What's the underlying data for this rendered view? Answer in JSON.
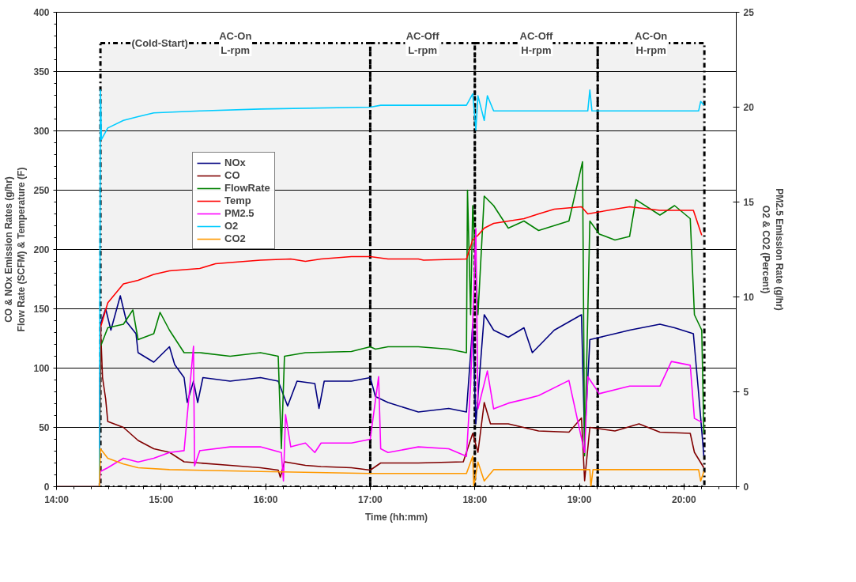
{
  "chart_data": {
    "type": "line",
    "xlabel": "Time (hh:mm)",
    "ylabel": "CO & NOx Emission Rates (g/hr)\nFlow Rate (SCFM) & Temperature (F)",
    "y2label": "PM2.5 Emission Rate (g/hr)\nO2 & CO2 (Percent)",
    "xlim": [
      14,
      20.5
    ],
    "xticks": [
      {
        "value": 14,
        "label": "14:00"
      },
      {
        "value": 15,
        "label": "15:00"
      },
      {
        "value": 16,
        "label": "16:00"
      },
      {
        "value": 17,
        "label": "17:00"
      },
      {
        "value": 18,
        "label": "18:00"
      },
      {
        "value": 19,
        "label": "19:00"
      },
      {
        "value": 20,
        "label": "20:00"
      }
    ],
    "ylim": [
      0,
      400
    ],
    "yticks": [
      0,
      50,
      100,
      150,
      200,
      250,
      300,
      350,
      400
    ],
    "y2lim": [
      0,
      25
    ],
    "y2ticks": [
      0,
      5,
      10,
      15,
      20,
      25
    ],
    "grid": "y",
    "legend": "left",
    "series": [
      {
        "name": "NOx",
        "color": "#000080",
        "x": [
          14.0,
          14.41,
          14.42,
          14.47,
          14.52,
          14.61,
          14.67,
          14.76,
          14.78,
          14.93,
          15.08,
          15.13,
          15.22,
          15.25,
          15.31,
          15.35,
          15.4,
          15.66,
          15.95,
          16.12,
          16.21,
          16.3,
          16.47,
          16.51,
          16.56,
          16.82,
          17.0,
          17.05,
          17.17,
          17.46,
          17.75,
          17.92,
          17.98,
          18.01,
          18.09,
          18.18,
          18.32,
          18.47,
          18.55,
          18.76,
          19.02,
          19.05,
          19.1,
          19.34,
          19.48,
          19.77,
          19.91,
          20.09,
          20.14,
          20.19
        ],
        "values": [
          0,
          0,
          137,
          150,
          132,
          161,
          139,
          129,
          113,
          105,
          118,
          103,
          92,
          71,
          89,
          71,
          92,
          89,
          92,
          89,
          68,
          89,
          87,
          66,
          89,
          89,
          92,
          76,
          71,
          63,
          66,
          63,
          137,
          53,
          145,
          132,
          126,
          134,
          113,
          132,
          145,
          39,
          124,
          129,
          132,
          137,
          134,
          129,
          79,
          26
        ]
      },
      {
        "name": "CO",
        "color": "#800000",
        "x": [
          14.0,
          14.41,
          14.42,
          14.44,
          14.47,
          14.49,
          14.64,
          14.78,
          14.93,
          15.08,
          15.22,
          15.37,
          15.66,
          15.95,
          16.12,
          16.14,
          16.18,
          16.38,
          16.53,
          16.82,
          17.0,
          17.1,
          17.46,
          17.89,
          17.98,
          18.03,
          18.09,
          18.15,
          18.32,
          18.61,
          18.9,
          19.02,
          19.05,
          19.1,
          19.34,
          19.57,
          19.77,
          20.06,
          20.1,
          20.19
        ],
        "values": [
          0,
          0,
          137,
          92,
          74,
          55,
          50,
          39,
          32,
          29,
          21,
          20,
          18,
          16,
          14,
          8,
          21,
          18,
          17,
          16,
          14,
          20,
          20,
          21,
          45,
          29,
          71,
          53,
          53,
          47,
          46,
          58,
          5,
          50,
          47,
          53,
          46,
          45,
          29,
          16
        ]
      },
      {
        "name": "FlowRate",
        "color": "#008000",
        "x": [
          14.0,
          14.41,
          14.42,
          14.49,
          14.64,
          14.73,
          14.78,
          14.93,
          14.99,
          15.08,
          15.22,
          15.37,
          15.66,
          15.95,
          16.12,
          16.15,
          16.18,
          16.38,
          16.82,
          17.0,
          17.05,
          17.17,
          17.46,
          17.75,
          17.92,
          17.93,
          17.96,
          17.98,
          18.03,
          18.09,
          18.18,
          18.32,
          18.47,
          18.61,
          18.9,
          19.03,
          19.05,
          19.1,
          19.19,
          19.34,
          19.48,
          19.54,
          19.77,
          19.91,
          20.06,
          20.1,
          20.17,
          20.19
        ],
        "values": [
          0,
          0,
          118,
          134,
          137,
          149,
          124,
          129,
          147,
          132,
          113,
          113,
          110,
          113,
          110,
          32,
          110,
          113,
          114,
          118,
          116,
          118,
          118,
          116,
          113,
          250,
          145,
          237,
          145,
          245,
          237,
          218,
          224,
          216,
          224,
          274,
          26,
          224,
          213,
          208,
          211,
          242,
          229,
          237,
          226,
          145,
          132,
          45
        ]
      },
      {
        "name": "Temp",
        "color": "#ff0000",
        "x": [
          14.0,
          14.41,
          14.42,
          14.49,
          14.64,
          14.78,
          14.93,
          15.08,
          15.37,
          15.52,
          15.66,
          15.95,
          16.24,
          16.38,
          16.53,
          16.82,
          17.0,
          17.17,
          17.46,
          17.51,
          17.92,
          17.95,
          17.98,
          18.03,
          18.09,
          18.18,
          18.47,
          18.61,
          18.76,
          19.02,
          19.08,
          19.34,
          19.48,
          19.77,
          20.09,
          20.17
        ],
        "values": [
          0,
          0,
          134,
          155,
          171,
          174,
          179,
          182,
          184,
          188,
          189,
          191,
          192,
          190,
          192,
          194,
          194,
          192,
          192,
          191,
          192,
          200,
          208,
          212,
          218,
          222,
          226,
          230,
          234,
          236,
          230,
          234,
          236,
          233,
          233,
          212
        ]
      },
      {
        "name": "PM2.5",
        "color": "#ff00ff",
        "axis": "y2",
        "x": [
          14.0,
          14.41,
          14.42,
          14.49,
          14.64,
          14.78,
          14.93,
          15.08,
          15.22,
          15.31,
          15.32,
          15.37,
          15.66,
          15.95,
          16.15,
          16.17,
          16.19,
          16.24,
          16.38,
          16.47,
          16.53,
          16.82,
          17.0,
          17.08,
          17.1,
          17.17,
          17.46,
          17.75,
          17.92,
          17.96,
          18.01,
          18.03,
          18.12,
          18.18,
          18.32,
          18.47,
          18.61,
          18.9,
          19.05,
          19.08,
          19.19,
          19.48,
          19.77,
          19.88,
          20.06,
          20.1,
          20.17
        ],
        "values": [
          0,
          0,
          0.8,
          1.0,
          1.5,
          1.3,
          1.5,
          1.8,
          1.9,
          7.4,
          1.1,
          1.9,
          2.1,
          2.1,
          1.8,
          0.3,
          3.8,
          2.1,
          2.3,
          1.8,
          2.3,
          2.3,
          2.5,
          5.8,
          2.0,
          1.8,
          2.1,
          2.0,
          1.6,
          5.4,
          13.6,
          4.1,
          6.1,
          4.1,
          4.4,
          4.6,
          4.8,
          5.6,
          1.8,
          5.8,
          4.9,
          5.3,
          5.3,
          6.6,
          6.4,
          3.6,
          3.4
        ]
      },
      {
        "name": "O2",
        "color": "#00ccff",
        "axis": "y2",
        "x": [
          14.0,
          14.41,
          14.42,
          14.43,
          14.49,
          14.64,
          14.78,
          14.93,
          15.37,
          15.95,
          17.0,
          17.1,
          17.92,
          17.98,
          18.01,
          18.03,
          18.09,
          18.12,
          18.18,
          18.61,
          19.08,
          19.1,
          19.12,
          19.77,
          20.14,
          20.16,
          20.19
        ],
        "values": [
          0,
          0,
          20.9,
          18.3,
          18.9,
          19.3,
          19.5,
          19.7,
          19.8,
          19.9,
          20.0,
          20.1,
          20.1,
          20.7,
          18.8,
          20.6,
          19.3,
          20.6,
          19.8,
          19.8,
          19.8,
          20.9,
          19.8,
          19.8,
          19.8,
          20.3,
          20.1
        ]
      },
      {
        "name": "CO2",
        "color": "#ff9900",
        "axis": "y2",
        "x": [
          14.0,
          14.41,
          14.42,
          14.49,
          14.64,
          14.78,
          15.08,
          15.95,
          17.0,
          17.92,
          17.98,
          17.99,
          18.03,
          18.09,
          18.18,
          19.1,
          19.11,
          19.13,
          20.14,
          20.16,
          20.19
        ],
        "values": [
          0,
          0,
          2.0,
          1.5,
          1.2,
          1.0,
          0.9,
          0.8,
          0.7,
          0.7,
          1.6,
          0,
          1.3,
          0.3,
          0.9,
          0.9,
          0,
          0.9,
          0.9,
          0.3,
          0.8
        ]
      }
    ],
    "bands": [
      {
        "axis": "x",
        "from": 14.42,
        "to": 17.0,
        "label": "AC-On\nL-rpm",
        "color": "#000000"
      },
      {
        "axis": "x",
        "from": 17.0,
        "to": 18.0,
        "label": "AC-Off\nL-rpm",
        "color": "#000000"
      },
      {
        "axis": "x",
        "from": 18.0,
        "to": 19.175,
        "label": "AC-Off\nH-rpm",
        "color": "#000000"
      },
      {
        "axis": "x",
        "from": 19.175,
        "to": 20.195,
        "label": "AC-On\nH-rpm",
        "color": "#000000"
      }
    ],
    "annotations": [
      "(Cold-Start)"
    ]
  }
}
